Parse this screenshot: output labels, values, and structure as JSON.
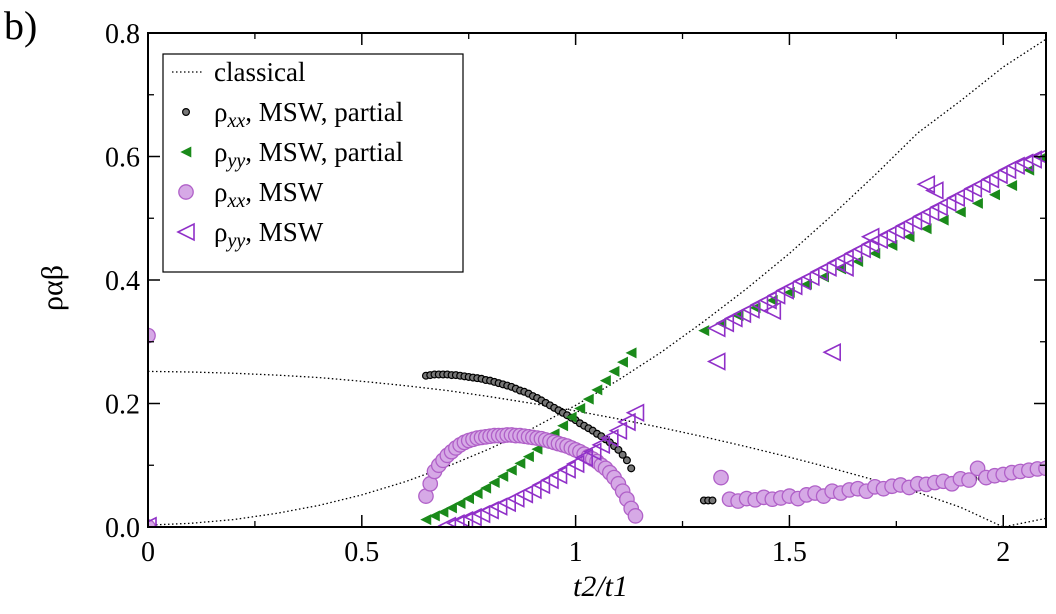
{
  "panel_label": "b)",
  "chart_data": {
    "type": "scatter",
    "xlabel": "t2/t1",
    "ylabel": "ραβ",
    "xlim": [
      0,
      2.1
    ],
    "ylim": [
      0,
      0.8
    ],
    "x_ticks": [
      0,
      0.5,
      1,
      1.5,
      2
    ],
    "x_tick_labels": [
      "0",
      "0.5",
      "1",
      "1.5",
      "2"
    ],
    "y_ticks": [
      0,
      0.2,
      0.4,
      0.6,
      0.8
    ],
    "y_tick_labels": [
      "0.0",
      "0.2",
      "0.4",
      "0.6",
      "0.8"
    ],
    "legend_position": "top-left",
    "series": [
      {
        "name": "classical",
        "name_parts": [
          "classical",
          "",
          ""
        ],
        "style": "dotted-line",
        "color": "#000000",
        "segments": [
          {
            "x": [
              0,
              0.1,
              0.2,
              0.3,
              0.4,
              0.5,
              0.6,
              0.7,
              0.8,
              0.9,
              1.0,
              1.1,
              1.2,
              1.3,
              1.4,
              1.5,
              1.6,
              1.7,
              1.8,
              1.9,
              2.0,
              2.1
            ],
            "y": [
              0.003,
              0.006,
              0.012,
              0.022,
              0.035,
              0.052,
              0.073,
              0.098,
              0.127,
              0.16,
              0.197,
              0.238,
              0.283,
              0.333,
              0.386,
              0.443,
              0.505,
              0.57,
              0.638,
              0.69,
              0.745,
              0.79
            ]
          },
          {
            "x": [
              0,
              0.1,
              0.2,
              0.3,
              0.4,
              0.5,
              0.6,
              0.7,
              0.8,
              0.9,
              1.0,
              1.1,
              1.2,
              1.3,
              1.4,
              1.5,
              1.6,
              1.7,
              1.8,
              1.9,
              2.0,
              2.1
            ],
            "y": [
              0.252,
              0.251,
              0.249,
              0.246,
              0.242,
              0.236,
              0.229,
              0.221,
              0.211,
              0.2,
              0.188,
              0.175,
              0.161,
              0.146,
              0.13,
              0.113,
              0.095,
              0.076,
              0.056,
              0.032,
              0.0,
              0.014
            ]
          }
        ]
      },
      {
        "name": "ρxx, MSW, partial",
        "name_parts": [
          "ρ",
          "xx",
          ", MSW, partial"
        ],
        "style": "small-circle",
        "color": "#000000",
        "ranges": [
          {
            "x": [
              0.65,
              0.66,
              0.67,
              0.68,
              0.69,
              0.7,
              0.71,
              0.72,
              0.73,
              0.74,
              0.75,
              0.76,
              0.77,
              0.78,
              0.79,
              0.8,
              0.81,
              0.82,
              0.83,
              0.84,
              0.85,
              0.86,
              0.87,
              0.88,
              0.89,
              0.9,
              0.91,
              0.92,
              0.93,
              0.94,
              0.95,
              0.96,
              0.97,
              0.98,
              0.99,
              1.0,
              1.01,
              1.02,
              1.03,
              1.04,
              1.05,
              1.06,
              1.07,
              1.08,
              1.09,
              1.1,
              1.11,
              1.12,
              1.13
            ],
            "y": [
              0.245,
              0.246,
              0.247,
              0.247,
              0.247,
              0.247,
              0.246,
              0.246,
              0.245,
              0.244,
              0.243,
              0.242,
              0.241,
              0.24,
              0.238,
              0.237,
              0.235,
              0.233,
              0.231,
              0.229,
              0.227,
              0.224,
              0.221,
              0.219,
              0.216,
              0.212,
              0.209,
              0.205,
              0.201,
              0.197,
              0.193,
              0.189,
              0.185,
              0.181,
              0.177,
              0.173,
              0.168,
              0.164,
              0.16,
              0.156,
              0.151,
              0.147,
              0.142,
              0.137,
              0.131,
              0.125,
              0.117,
              0.108,
              0.095
            ]
          },
          {
            "x": [
              1.3,
              1.31,
              1.32,
              1.81,
              1.83,
              1.85,
              1.87,
              1.89,
              1.91,
              1.93,
              1.95,
              1.97,
              1.99,
              2.01,
              2.03,
              2.05,
              2.07,
              2.09
            ],
            "y": [
              0.043,
              0.043,
              0.043,
              0.071,
              0.072,
              0.073,
              0.074,
              0.076,
              0.077,
              0.078,
              0.079,
              0.081,
              0.083,
              0.084,
              0.086,
              0.088,
              0.09,
              0.093
            ]
          }
        ]
      },
      {
        "name": "ρyy, MSW, partial",
        "name_parts": [
          "ρ",
          "yy",
          ", MSW, partial"
        ],
        "style": "small-triangle-left",
        "color": "#1a8a1a",
        "ranges": [
          {
            "x": [
              0.65,
              0.67,
              0.69,
              0.71,
              0.73,
              0.75,
              0.77,
              0.79,
              0.81,
              0.83,
              0.85,
              0.87,
              0.89,
              0.91,
              0.93,
              0.95,
              0.97,
              0.99,
              1.01,
              1.03,
              1.05,
              1.07,
              1.09,
              1.11,
              1.13
            ],
            "y": [
              0.012,
              0.018,
              0.024,
              0.031,
              0.038,
              0.046,
              0.054,
              0.063,
              0.072,
              0.082,
              0.092,
              0.103,
              0.114,
              0.126,
              0.138,
              0.151,
              0.164,
              0.178,
              0.192,
              0.207,
              0.222,
              0.237,
              0.252,
              0.267,
              0.282
            ]
          },
          {
            "x": [
              1.3,
              1.34,
              1.38,
              1.42,
              1.46,
              1.5,
              1.54,
              1.58,
              1.62,
              1.66,
              1.7,
              1.74,
              1.78,
              1.82,
              1.86,
              1.9,
              1.94,
              1.98,
              2.02,
              2.06,
              2.09
            ],
            "y": [
              0.318,
              0.33,
              0.342,
              0.355,
              0.367,
              0.38,
              0.393,
              0.405,
              0.418,
              0.43,
              0.443,
              0.456,
              0.47,
              0.483,
              0.497,
              0.51,
              0.524,
              0.538,
              0.553,
              0.578,
              0.598
            ]
          }
        ]
      },
      {
        "name": "ρxx, MSW",
        "name_parts": [
          "ρ",
          "xx",
          ", MSW"
        ],
        "style": "large-circle",
        "color": "#b060c8",
        "x": [
          0,
          0,
          0.65,
          0.66,
          0.67,
          0.68,
          0.69,
          0.7,
          0.71,
          0.72,
          0.73,
          0.74,
          0.75,
          0.76,
          0.77,
          0.78,
          0.79,
          0.8,
          0.81,
          0.82,
          0.83,
          0.84,
          0.85,
          0.86,
          0.87,
          0.88,
          0.89,
          0.9,
          0.91,
          0.92,
          0.93,
          0.94,
          0.95,
          0.96,
          0.97,
          0.98,
          0.99,
          1.0,
          1.01,
          1.02,
          1.03,
          1.04,
          1.05,
          1.06,
          1.07,
          1.08,
          1.09,
          1.1,
          1.11,
          1.12,
          1.13,
          1.14,
          1.34,
          1.36,
          1.38,
          1.4,
          1.42,
          1.44,
          1.46,
          1.48,
          1.5,
          1.52,
          1.54,
          1.56,
          1.58,
          1.6,
          1.62,
          1.64,
          1.66,
          1.68,
          1.7,
          1.72,
          1.74,
          1.76,
          1.78,
          1.8,
          1.82,
          1.84,
          1.86,
          1.88,
          1.9,
          1.92,
          1.94,
          1.96,
          1.98,
          2.0,
          2.02,
          2.04,
          2.06,
          2.08,
          2.1
        ],
        "y": [
          0.31,
          0.0,
          0.05,
          0.07,
          0.09,
          0.1,
          0.108,
          0.116,
          0.122,
          0.128,
          0.133,
          0.137,
          0.14,
          0.142,
          0.144,
          0.145,
          0.146,
          0.147,
          0.148,
          0.148,
          0.148,
          0.149,
          0.149,
          0.148,
          0.148,
          0.147,
          0.146,
          0.145,
          0.144,
          0.143,
          0.141,
          0.139,
          0.137,
          0.135,
          0.133,
          0.131,
          0.128,
          0.125,
          0.122,
          0.118,
          0.114,
          0.11,
          0.106,
          0.1,
          0.095,
          0.088,
          0.08,
          0.07,
          0.058,
          0.045,
          0.03,
          0.018,
          0.08,
          0.045,
          0.042,
          0.046,
          0.044,
          0.048,
          0.045,
          0.047,
          0.05,
          0.046,
          0.052,
          0.055,
          0.05,
          0.058,
          0.055,
          0.06,
          0.062,
          0.058,
          0.065,
          0.062,
          0.066,
          0.068,
          0.064,
          0.07,
          0.069,
          0.072,
          0.074,
          0.07,
          0.078,
          0.076,
          0.095,
          0.08,
          0.083,
          0.085,
          0.088,
          0.09,
          0.092,
          0.094,
          0.095
        ]
      },
      {
        "name": "ρyy, MSW",
        "name_parts": [
          "ρ",
          "yy",
          ", MSW"
        ],
        "style": "large-triangle-left-open",
        "color": "#9030c8",
        "x": [
          0,
          0.7,
          0.72,
          0.74,
          0.76,
          0.78,
          0.8,
          0.82,
          0.84,
          0.86,
          0.88,
          0.9,
          0.92,
          0.94,
          0.96,
          0.98,
          1.0,
          1.02,
          1.04,
          1.06,
          1.08,
          1.1,
          1.12,
          1.14,
          1.33,
          1.35,
          1.37,
          1.39,
          1.41,
          1.43,
          1.45,
          1.47,
          1.49,
          1.51,
          1.53,
          1.55,
          1.57,
          1.59,
          1.61,
          1.63,
          1.65,
          1.67,
          1.69,
          1.71,
          1.73,
          1.75,
          1.77,
          1.79,
          1.81,
          1.83,
          1.85,
          1.87,
          1.89,
          1.91,
          1.93,
          1.95,
          1.97,
          1.99,
          2.01,
          2.03,
          2.05,
          2.07,
          2.09,
          1.33,
          1.46,
          1.6,
          1.63,
          1.69,
          1.82,
          1.84
        ],
        "y": [
          0.002,
          0.002,
          0.006,
          0.011,
          0.016,
          0.021,
          0.027,
          0.033,
          0.039,
          0.046,
          0.053,
          0.06,
          0.068,
          0.076,
          0.084,
          0.093,
          0.102,
          0.112,
          0.122,
          0.133,
          0.144,
          0.156,
          0.17,
          0.185,
          0.322,
          0.33,
          0.338,
          0.345,
          0.352,
          0.36,
          0.367,
          0.375,
          0.383,
          0.39,
          0.398,
          0.405,
          0.413,
          0.42,
          0.428,
          0.435,
          0.443,
          0.45,
          0.458,
          0.465,
          0.473,
          0.48,
          0.488,
          0.495,
          0.503,
          0.51,
          0.518,
          0.525,
          0.533,
          0.54,
          0.548,
          0.555,
          0.563,
          0.57,
          0.578,
          0.585,
          0.59,
          0.595,
          0.6,
          0.268,
          0.35,
          0.283,
          0.42,
          0.47,
          0.555,
          0.545
        ]
      }
    ]
  }
}
